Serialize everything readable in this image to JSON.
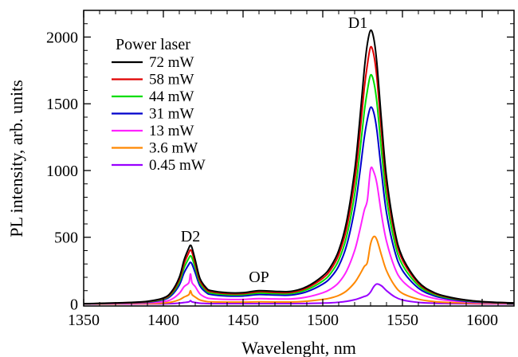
{
  "chart_data": {
    "type": "line",
    "title": "",
    "xlabel": "Wavelenght, nm",
    "ylabel": "PL intensity, arb. units",
    "xlim": [
      1350,
      1620
    ],
    "ylim": [
      -15,
      2200
    ],
    "xticks": [
      1350,
      1400,
      1450,
      1500,
      1550,
      1600
    ],
    "yticks": [
      0,
      500,
      1000,
      1500,
      2000
    ],
    "x_tick_labels": [
      "1350",
      "1400",
      "1450",
      "1500",
      "1550",
      "1600"
    ],
    "y_tick_labels": [
      "0",
      "500",
      "1000",
      "1500",
      "2000"
    ],
    "grid": false,
    "legend": {
      "title": "Power laser",
      "placement": "top-left"
    },
    "annotations": [
      {
        "text": "D1",
        "x": 1522,
        "y": 2070
      },
      {
        "text": "D2",
        "x": 1417,
        "y": 470
      },
      {
        "text": "OP",
        "x": 1460,
        "y": 165
      }
    ],
    "x": [
      1350,
      1360,
      1370,
      1380,
      1390,
      1400,
      1405,
      1410,
      1413,
      1416,
      1417,
      1418,
      1420,
      1423,
      1427,
      1430,
      1440,
      1450,
      1460,
      1470,
      1480,
      1490,
      1500,
      1505,
      1510,
      1515,
      1520,
      1523,
      1526,
      1528,
      1530,
      1532,
      1534,
      1537,
      1540,
      1545,
      1550,
      1560,
      1570,
      1580,
      1590,
      1600,
      1610,
      1620
    ],
    "series": [
      {
        "name": "72 mW",
        "color": "#000000",
        "values": [
          2,
          5,
          8,
          12,
          20,
          45,
          90,
          200,
          330,
          420,
          440,
          420,
          330,
          190,
          120,
          100,
          85,
          85,
          100,
          95,
          95,
          130,
          210,
          280,
          400,
          620,
          1000,
          1350,
          1750,
          1950,
          2050,
          1990,
          1800,
          1350,
          950,
          560,
          350,
          165,
          85,
          50,
          30,
          18,
          12,
          8
        ]
      },
      {
        "name": "58 mW",
        "color": "#e00000",
        "values": [
          2,
          4,
          7,
          11,
          18,
          41,
          82,
          184,
          303,
          386,
          405,
          386,
          303,
          174,
          109,
          92,
          78,
          78,
          92,
          87,
          87,
          120,
          193,
          258,
          368,
          570,
          920,
          1242,
          1610,
          1794,
          1925,
          1868,
          1690,
          1267,
          892,
          526,
          329,
          155,
          80,
          47,
          28,
          17,
          11,
          7
        ]
      },
      {
        "name": "44 mW",
        "color": "#00dd00",
        "values": [
          2,
          4,
          6,
          10,
          16,
          37,
          74,
          164,
          271,
          344,
          361,
          344,
          271,
          156,
          98,
          82,
          70,
          70,
          82,
          78,
          78,
          107,
          172,
          230,
          328,
          508,
          820,
          1107,
          1435,
          1599,
          1715,
          1665,
          1506,
          1129,
          795,
          468,
          293,
          138,
          71,
          42,
          25,
          15,
          10,
          7
        ]
      },
      {
        "name": "31 mW",
        "color": "#0000cc",
        "values": [
          2,
          3,
          6,
          9,
          14,
          32,
          64,
          142,
          234,
          298,
          312,
          298,
          234,
          135,
          85,
          71,
          60,
          60,
          71,
          67,
          67,
          92,
          149,
          199,
          284,
          440,
          710,
          959,
          1243,
          1384,
          1473,
          1434,
          1298,
          972,
          684,
          403,
          252,
          119,
          61,
          36,
          21,
          13,
          9,
          6
        ]
      },
      {
        "name": "13 mW",
        "color": "#ff22ff",
        "values": [
          1,
          2,
          3,
          5,
          8,
          18,
          34,
          80,
          130,
          160,
          225,
          160,
          130,
          75,
          47,
          40,
          34,
          34,
          40,
          38,
          38,
          52,
          84,
          112,
          160,
          248,
          400,
          540,
          700,
          780,
          1010,
          990,
          900,
          660,
          470,
          277,
          173,
          82,
          42,
          25,
          15,
          9,
          6,
          4
        ]
      },
      {
        "name": "3.6 mW",
        "color": "#ff8800",
        "values": [
          0,
          1,
          1,
          2,
          3,
          7,
          14,
          32,
          52,
          70,
          100,
          70,
          52,
          30,
          19,
          16,
          14,
          14,
          16,
          15,
          15,
          21,
          34,
          45,
          64,
          99,
          160,
          216,
          280,
          312,
          450,
          505,
          480,
          360,
          250,
          140,
          80,
          36,
          18,
          11,
          7,
          4,
          3,
          2
        ]
      },
      {
        "name": "0.45 mW",
        "color": "#9900ff",
        "values": [
          0,
          0,
          0,
          0,
          1,
          1,
          3,
          7,
          11,
          16,
          25,
          16,
          11,
          6,
          4,
          3,
          3,
          3,
          3,
          3,
          3,
          4,
          7,
          9,
          13,
          20,
          32,
          43,
          56,
          65,
          90,
          130,
          150,
          135,
          100,
          55,
          30,
          12,
          6,
          4,
          2,
          1,
          1,
          0
        ]
      }
    ]
  }
}
